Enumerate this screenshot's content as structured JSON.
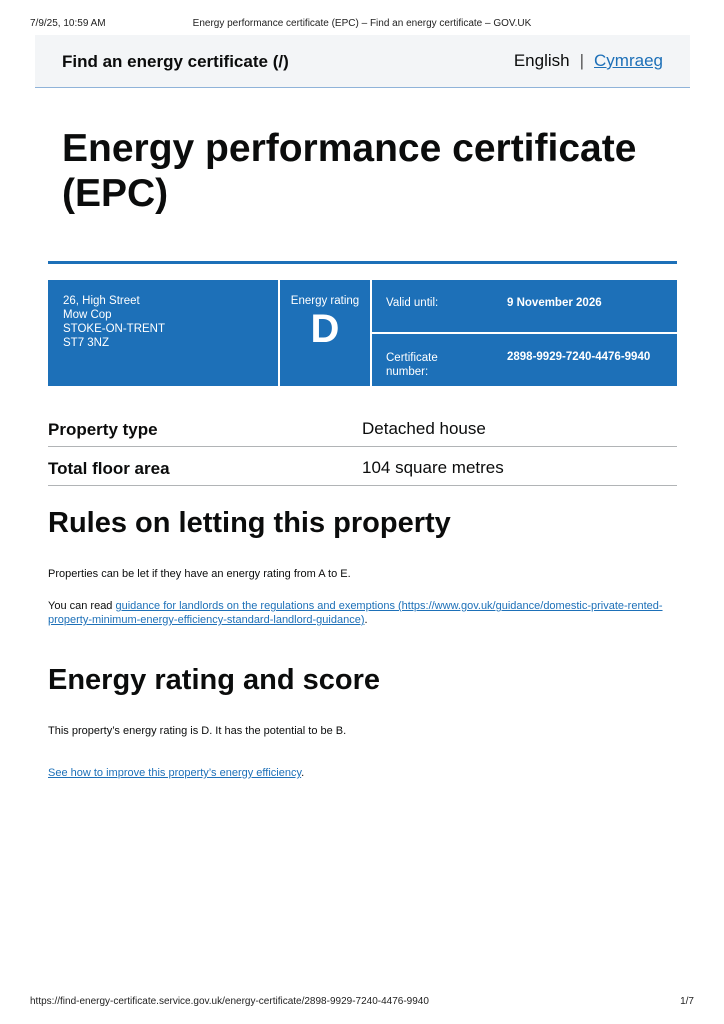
{
  "print_header": {
    "datetime": "7/9/25, 10:59 AM",
    "page_title": "Energy performance certificate (EPC) – Find an energy certificate – GOV.UK"
  },
  "header": {
    "service_name": "Find an energy certificate",
    "service_link": "(/)",
    "lang_current": "English",
    "lang_separator": "|",
    "lang_other": "Cymraeg"
  },
  "page_title": "Energy performance certificate (EPC)",
  "summary": {
    "address": [
      "26, High Street",
      "Mow Cop",
      "STOKE-ON-TRENT",
      "ST7 3NZ"
    ],
    "rating_label": "Energy rating",
    "rating": "D",
    "valid_label": "Valid until:",
    "valid_value": "9 November 2026",
    "cert_label": "Certificate number:",
    "cert_value": "2898-9929-7240-4476-9940",
    "box_color": "#1d70b8"
  },
  "details": [
    {
      "key": "Property type",
      "value": "Detached house"
    },
    {
      "key": "Total floor area",
      "value": "104 square metres"
    }
  ],
  "letting": {
    "heading": "Rules on letting this property",
    "p1": "Properties can be let if they have an energy rating from A to E.",
    "p2_prefix": "You can read ",
    "p2_link": "guidance for landlords on the regulations and exemptions (https://www.gov.uk/guidance/domestic-private-rented-property-minimum-energy-efficiency-standard-landlord-guidance)",
    "p2_suffix": "."
  },
  "rating_section": {
    "heading": "Energy rating and score",
    "p1": "This property’s energy rating is D. It has the potential to be B.",
    "link": "See how to improve this property’s energy efficiency",
    "link_suffix": "."
  },
  "print_footer": {
    "url": "https://find-energy-certificate.service.gov.uk/energy-certificate/2898-9929-7240-4476-9940",
    "page": "1/7"
  }
}
